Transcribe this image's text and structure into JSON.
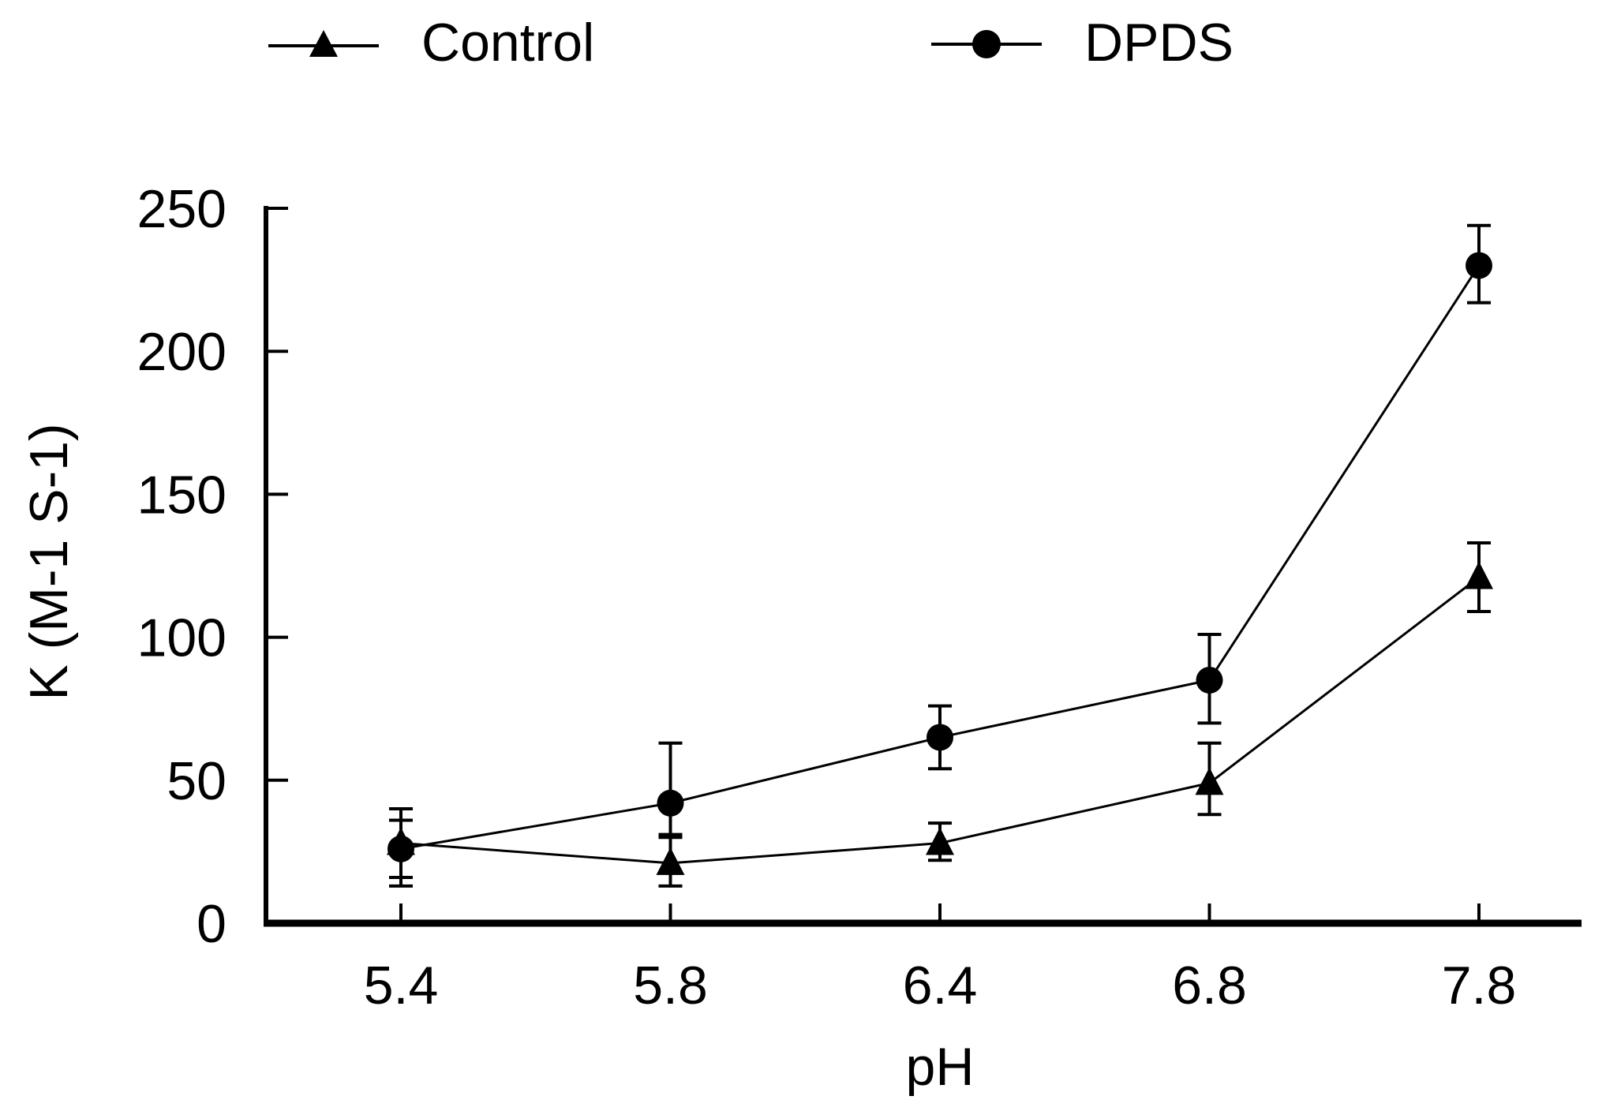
{
  "chart_data": {
    "type": "line",
    "title": "",
    "xlabel": "pH",
    "ylabel": "K (M-1 S-1)",
    "categories": [
      "5.4",
      "5.8",
      "6.4",
      "6.8",
      "7.8"
    ],
    "series": [
      {
        "name": "Control",
        "marker": "triangle",
        "values": [
          28,
          21,
          28,
          49,
          121
        ],
        "err_up": [
          12,
          9,
          7,
          14,
          12
        ],
        "err_down": [
          12,
          8,
          6,
          11,
          12
        ]
      },
      {
        "name": "DPDS",
        "marker": "circle",
        "values": [
          26,
          42,
          65,
          85,
          230
        ],
        "err_up": [
          10,
          21,
          11,
          16,
          14
        ],
        "err_down": [
          13,
          11,
          11,
          15,
          13
        ]
      }
    ],
    "ylim": [
      0,
      250
    ],
    "yticks": [
      0,
      50,
      100,
      150,
      200,
      250
    ],
    "grid": false,
    "legend_position": "top",
    "colors": {
      "ink": "#000000",
      "background": "#ffffff"
    }
  }
}
